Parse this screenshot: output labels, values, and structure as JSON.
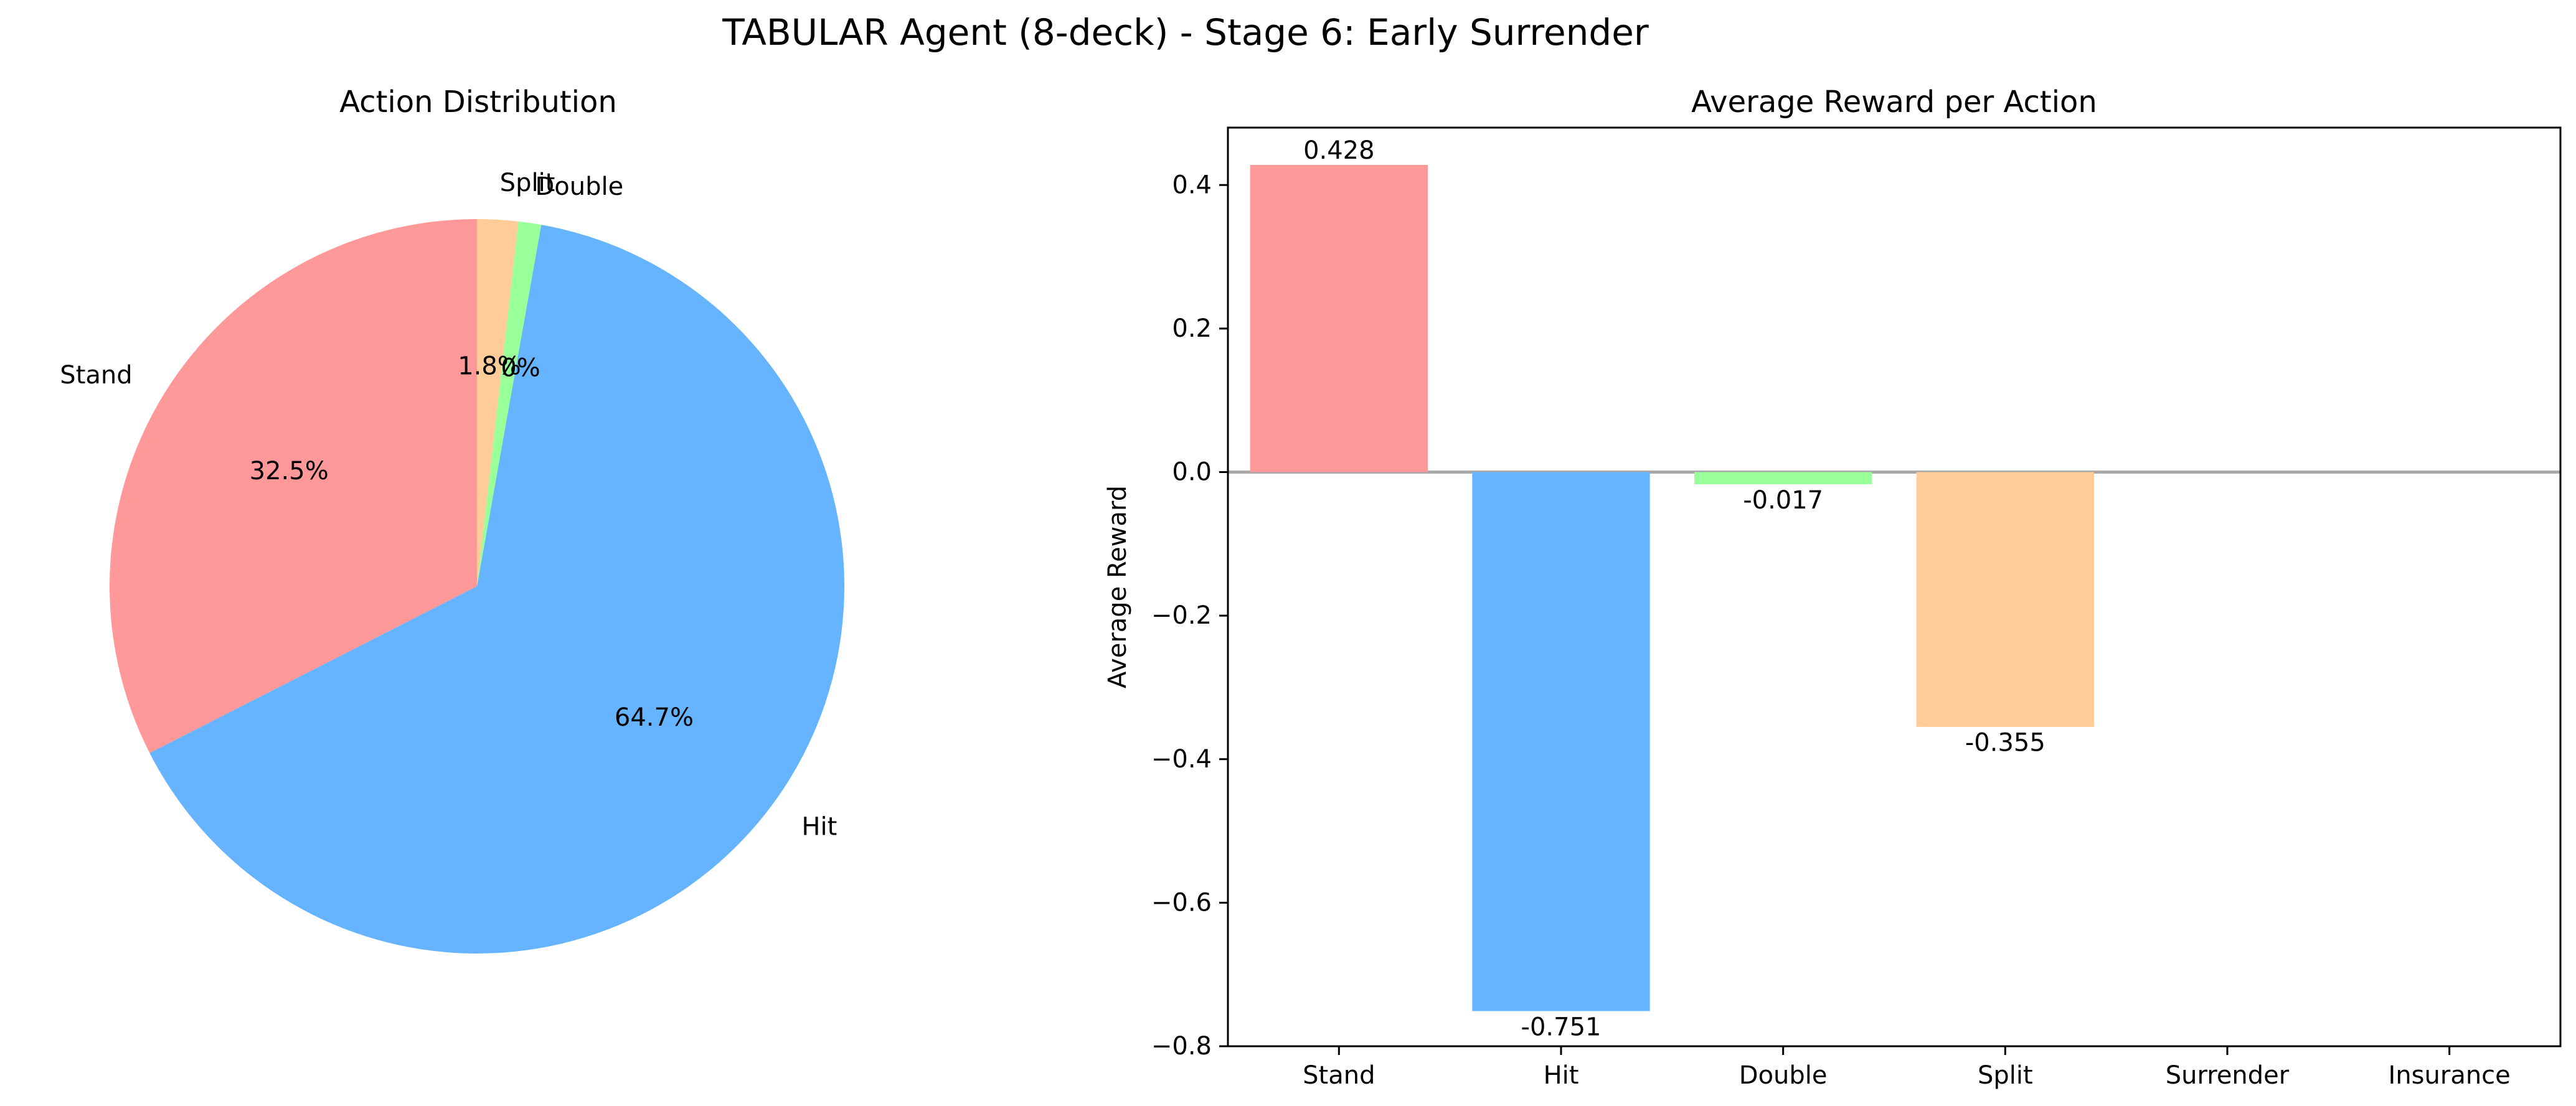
{
  "figure": {
    "suptitle": "TABULAR Agent (8-deck) - Stage 6: Early Surrender"
  },
  "chart_data": [
    {
      "type": "pie",
      "title": "Action Distribution",
      "labels": [
        "Stand",
        "Hit",
        "Double",
        "Split"
      ],
      "values": [
        32.5,
        64.7,
        1.0,
        1.8
      ],
      "autopct_labels": [
        "32.5%",
        "64.7%",
        "1.0%",
        "1.8%"
      ],
      "colors": [
        "#ff9999",
        "#66b3ff",
        "#99ff99",
        "#ffcc99"
      ],
      "start_angle_deg": 90,
      "direction": "counterclockwise"
    },
    {
      "type": "bar",
      "title": "Average Reward per Action",
      "categories": [
        "Stand",
        "Hit",
        "Double",
        "Split",
        "Surrender",
        "Insurance"
      ],
      "values": [
        0.428,
        -0.751,
        -0.017,
        -0.355,
        null,
        null
      ],
      "value_labels": [
        "0.428",
        "-0.751",
        "-0.017",
        "-0.355",
        "",
        ""
      ],
      "colors": [
        "#ff9999",
        "#66b3ff",
        "#99ff99",
        "#ffcc99",
        "#ff99cc",
        "#c2c2f0"
      ],
      "xlabel": "",
      "ylabel": "Average Reward",
      "ylim": [
        -0.8,
        0.48
      ],
      "yticks": [
        -0.8,
        -0.6,
        -0.4,
        -0.2,
        0.0,
        0.2,
        0.4
      ],
      "ytick_labels": [
        "−0.8",
        "−0.6",
        "−0.4",
        "−0.2",
        "0.0",
        "0.2",
        "0.4"
      ],
      "zero_line": true,
      "grid": false
    }
  ]
}
